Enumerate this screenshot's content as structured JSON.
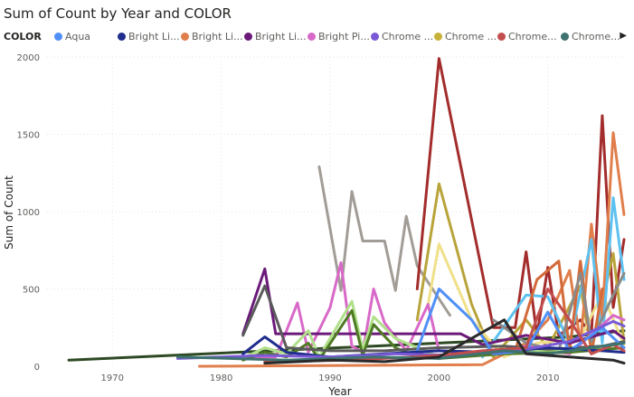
{
  "chart_data": {
    "type": "line",
    "title": "Sum of Count by Year and COLOR",
    "xlabel": "Year",
    "ylabel": "Sum of Count",
    "xlim": [
      1964,
      2017
    ],
    "ylim": [
      0,
      2000
    ],
    "xticks": [
      1970,
      1980,
      1990,
      2000,
      2010
    ],
    "yticks": [
      0,
      500,
      1000,
      1500,
      2000
    ],
    "grid": true,
    "legend_title": "COLOR",
    "legend_position": "top",
    "legend_entries": [
      {
        "label": "Aqua",
        "color": "#4f8ff7"
      },
      {
        "label": "Bright Li...",
        "color": "#1f2d8c"
      },
      {
        "label": "Bright Li...",
        "color": "#e07f4c"
      },
      {
        "label": "Bright Li...",
        "color": "#6b1a7a"
      },
      {
        "label": "Bright Pi...",
        "color": "#d869c8"
      },
      {
        "label": "Chrome ...",
        "color": "#7a5ad6"
      },
      {
        "label": "Chrome ...",
        "color": "#c8b13a"
      },
      {
        "label": "Chrome...",
        "color": "#c24d4d"
      },
      {
        "label": "Chrome...",
        "color": "#3f7370"
      }
    ],
    "series": [
      {
        "color": "#2e4a24",
        "points": [
          [
            1966,
            40
          ],
          [
            2000,
            150
          ],
          [
            2012,
            190
          ],
          [
            2017,
            230
          ]
        ]
      },
      {
        "color": "#a29c96",
        "points": [
          [
            1989,
            1290
          ],
          [
            1991,
            490
          ],
          [
            1992,
            1130
          ],
          [
            1993,
            810
          ],
          [
            1995,
            810
          ],
          [
            1996,
            490
          ],
          [
            1997,
            970
          ],
          [
            1998,
            650
          ],
          [
            2001,
            330
          ]
        ]
      },
      {
        "color": "#a32c2c",
        "points": [
          [
            1998,
            500
          ],
          [
            2000,
            1990
          ],
          [
            2005,
            250
          ],
          [
            2007,
            250
          ],
          [
            2008,
            740
          ],
          [
            2009,
            200
          ],
          [
            2010,
            640
          ],
          [
            2011,
            200
          ],
          [
            2013,
            300
          ],
          [
            2014,
            200
          ],
          [
            2015,
            1620
          ],
          [
            2016,
            380
          ],
          [
            2017,
            820
          ]
        ]
      },
      {
        "color": "#b8a43a",
        "points": [
          [
            1998,
            300
          ],
          [
            2000,
            1180
          ],
          [
            2003,
            400
          ],
          [
            2005,
            60
          ],
          [
            2008,
            300
          ],
          [
            2010,
            120
          ],
          [
            2013,
            520
          ],
          [
            2014,
            100
          ],
          [
            2016,
            730
          ],
          [
            2017,
            160
          ]
        ]
      },
      {
        "color": "#f0e08a",
        "points": [
          [
            1999,
            400
          ],
          [
            2000,
            790
          ],
          [
            2003,
            300
          ],
          [
            2006,
            60
          ],
          [
            2009,
            150
          ],
          [
            2013,
            180
          ],
          [
            2015,
            470
          ],
          [
            2017,
            140
          ]
        ]
      },
      {
        "color": "#e07f4c",
        "points": [
          [
            1978,
            0
          ],
          [
            2004,
            10
          ],
          [
            2008,
            150
          ],
          [
            2010,
            300
          ],
          [
            2012,
            620
          ],
          [
            2013,
            150
          ],
          [
            2014,
            920
          ],
          [
            2015,
            310
          ],
          [
            2016,
            1510
          ],
          [
            2017,
            980
          ]
        ]
      },
      {
        "color": "#5ec1f0",
        "points": [
          [
            2004,
            60
          ],
          [
            2008,
            460
          ],
          [
            2010,
            450
          ],
          [
            2012,
            150
          ],
          [
            2014,
            820
          ],
          [
            2015,
            150
          ],
          [
            2016,
            1090
          ],
          [
            2017,
            560
          ]
        ]
      },
      {
        "color": "#d46a3a",
        "points": [
          [
            2007,
            100
          ],
          [
            2009,
            560
          ],
          [
            2011,
            680
          ],
          [
            2012,
            100
          ],
          [
            2013,
            680
          ],
          [
            2014,
            80
          ],
          [
            2015,
            500
          ]
        ]
      },
      {
        "color": "#8a8a8a",
        "points": [
          [
            2005,
            300
          ],
          [
            2008,
            150
          ],
          [
            2011,
            100
          ],
          [
            2013,
            600
          ],
          [
            2014,
            160
          ],
          [
            2016,
            460
          ],
          [
            2017,
            600
          ]
        ]
      },
      {
        "color": "#d869c8",
        "points": [
          [
            1982,
            60
          ],
          [
            1985,
            60
          ],
          [
            1986,
            230
          ],
          [
            1987,
            410
          ],
          [
            1988,
            90
          ],
          [
            1990,
            380
          ],
          [
            1991,
            670
          ],
          [
            1992,
            130
          ],
          [
            1993,
            90
          ],
          [
            1994,
            500
          ],
          [
            1995,
            280
          ],
          [
            1997,
            100
          ],
          [
            1999,
            400
          ],
          [
            2000,
            100
          ],
          [
            2004,
            80
          ],
          [
            2008,
            130
          ],
          [
            2012,
            80
          ],
          [
            2016,
            330
          ],
          [
            2017,
            300
          ]
        ]
      },
      {
        "color": "#6b1a7a",
        "points": [
          [
            1982,
            210
          ],
          [
            1984,
            630
          ],
          [
            1985,
            210
          ],
          [
            1990,
            210
          ],
          [
            2000,
            210
          ],
          [
            2002,
            210
          ],
          [
            2004,
            140
          ],
          [
            2008,
            200
          ],
          [
            2012,
            150
          ],
          [
            2016,
            230
          ],
          [
            2017,
            180
          ]
        ]
      },
      {
        "color": "#b0e08a",
        "points": [
          [
            1982,
            50
          ],
          [
            1984,
            120
          ],
          [
            1986,
            80
          ],
          [
            1988,
            230
          ],
          [
            1989,
            60
          ],
          [
            1992,
            420
          ],
          [
            1993,
            110
          ],
          [
            1994,
            320
          ],
          [
            1996,
            180
          ],
          [
            1998,
            120
          ],
          [
            2000,
            60
          ],
          [
            2005,
            80
          ],
          [
            2010,
            100
          ],
          [
            2015,
            120
          ],
          [
            2017,
            150
          ]
        ]
      },
      {
        "color": "#4f7a24",
        "points": [
          [
            1982,
            40
          ],
          [
            1984,
            90
          ],
          [
            1986,
            60
          ],
          [
            1988,
            150
          ],
          [
            1989,
            40
          ],
          [
            1992,
            360
          ],
          [
            1993,
            70
          ],
          [
            1994,
            270
          ],
          [
            1996,
            120
          ],
          [
            1998,
            60
          ],
          [
            2000,
            50
          ],
          [
            2006,
            80
          ],
          [
            2012,
            90
          ],
          [
            2017,
            120
          ]
        ]
      },
      {
        "color": "#5a5a5a",
        "points": [
          [
            1982,
            200
          ],
          [
            1984,
            520
          ],
          [
            1986,
            120
          ],
          [
            1990,
            100
          ],
          [
            1995,
            100
          ],
          [
            2000,
            120
          ],
          [
            2006,
            130
          ],
          [
            2010,
            110
          ],
          [
            2015,
            130
          ],
          [
            2017,
            160
          ]
        ]
      },
      {
        "color": "#4f8ff7",
        "points": [
          [
            1998,
            100
          ],
          [
            2000,
            500
          ],
          [
            2003,
            300
          ],
          [
            2005,
            80
          ],
          [
            2008,
            100
          ],
          [
            2010,
            350
          ],
          [
            2012,
            100
          ],
          [
            2015,
            250
          ],
          [
            2017,
            120
          ]
        ]
      },
      {
        "color": "#1f2d8c",
        "points": [
          [
            1982,
            80
          ],
          [
            1984,
            190
          ],
          [
            1986,
            90
          ],
          [
            1990,
            60
          ],
          [
            1995,
            80
          ],
          [
            2000,
            100
          ],
          [
            2005,
            90
          ],
          [
            2010,
            120
          ],
          [
            2015,
            100
          ],
          [
            2017,
            90
          ]
        ]
      },
      {
        "color": "#7a5ad6",
        "points": [
          [
            1976,
            50
          ],
          [
            1984,
            70
          ],
          [
            1990,
            60
          ],
          [
            1996,
            80
          ],
          [
            2002,
            70
          ],
          [
            2008,
            110
          ],
          [
            2012,
            160
          ],
          [
            2016,
            290
          ],
          [
            2017,
            260
          ]
        ]
      },
      {
        "color": "#c24d4d",
        "points": [
          [
            1984,
            30
          ],
          [
            1992,
            40
          ],
          [
            2000,
            70
          ],
          [
            2004,
            100
          ],
          [
            2008,
            120
          ],
          [
            2010,
            500
          ],
          [
            2012,
            300
          ],
          [
            2014,
            80
          ],
          [
            2016,
            140
          ],
          [
            2017,
            100
          ]
        ]
      },
      {
        "color": "#3f7370",
        "points": [
          [
            1976,
            60
          ],
          [
            1986,
            40
          ],
          [
            1994,
            60
          ],
          [
            2000,
            50
          ],
          [
            2006,
            100
          ],
          [
            2010,
            80
          ],
          [
            2014,
            120
          ],
          [
            2017,
            150
          ]
        ]
      },
      {
        "color": "#2a2a2a",
        "points": [
          [
            1984,
            20
          ],
          [
            1990,
            40
          ],
          [
            1995,
            30
          ],
          [
            2000,
            60
          ],
          [
            2006,
            300
          ],
          [
            2008,
            80
          ],
          [
            2012,
            60
          ],
          [
            2016,
            40
          ],
          [
            2017,
            20
          ]
        ]
      }
    ]
  }
}
